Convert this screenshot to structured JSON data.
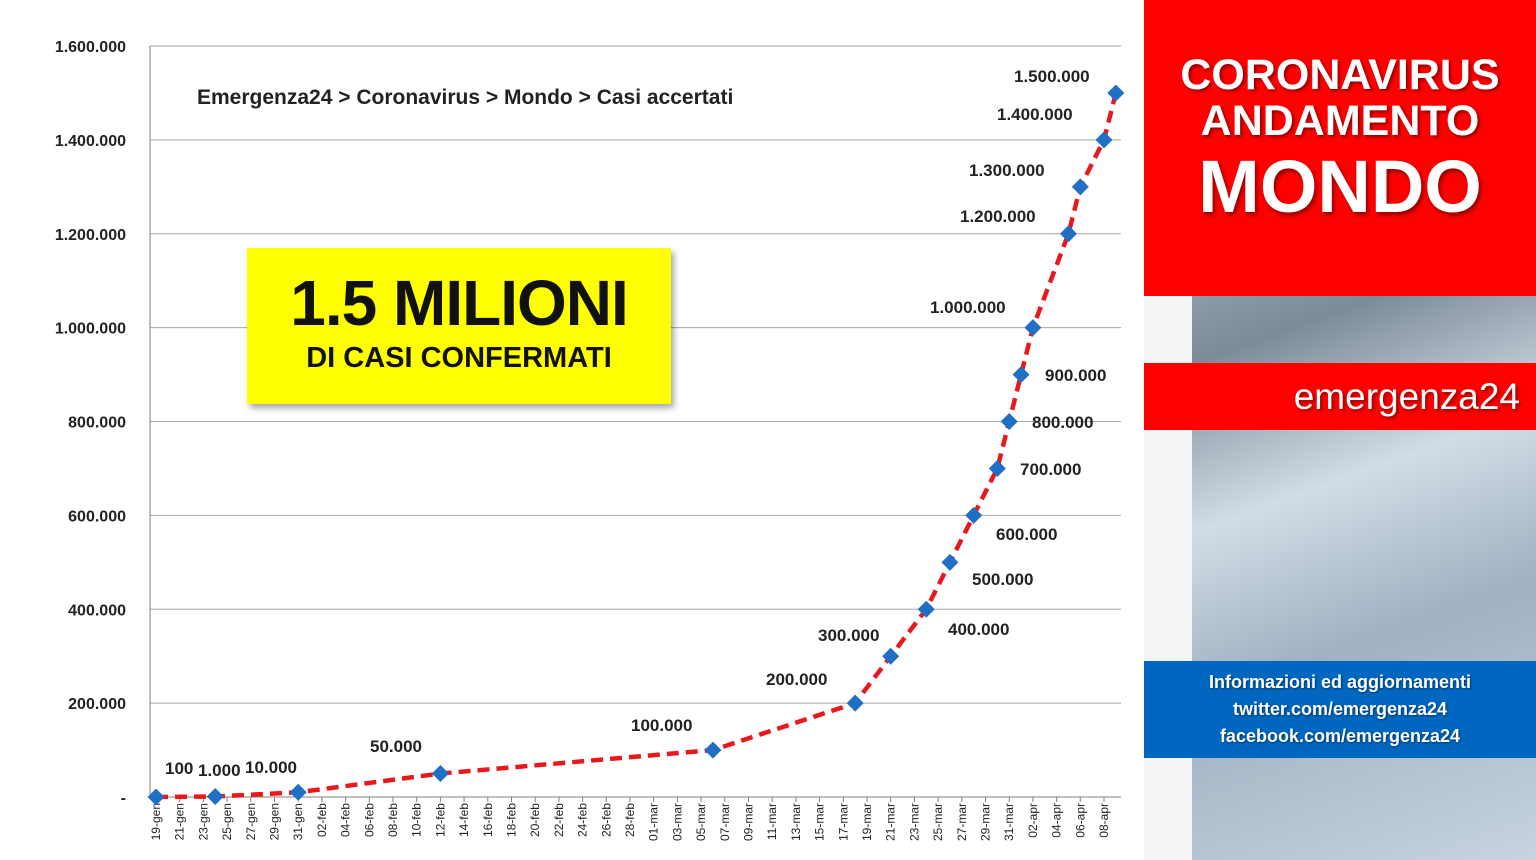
{
  "chart_data": {
    "type": "line",
    "title": "Emergenza24  > Coronavirus >  Mondo > Casi accertati",
    "ylim": [
      0,
      1600000
    ],
    "yticks": [
      {
        "value": 0,
        "label": "-"
      },
      {
        "value": 200000,
        "label": "200.000"
      },
      {
        "value": 400000,
        "label": "400.000"
      },
      {
        "value": 600000,
        "label": "600.000"
      },
      {
        "value": 800000,
        "label": "800.000"
      },
      {
        "value": 1000000,
        "label": "1.000.000"
      },
      {
        "value": 1200000,
        "label": "1.200.000"
      },
      {
        "value": 1400000,
        "label": "1.400.000"
      },
      {
        "value": 1600000,
        "label": "1.600.000"
      }
    ],
    "categories": [
      "19-gen",
      "21-gen",
      "23-gen",
      "25-gen",
      "27-gen",
      "29-gen",
      "31-gen",
      "02-feb",
      "04-feb",
      "06-feb",
      "08-feb",
      "10-feb",
      "12-feb",
      "14-feb",
      "16-feb",
      "18-feb",
      "20-feb",
      "22-feb",
      "24-feb",
      "26-feb",
      "28-feb",
      "01-mar",
      "03-mar",
      "05-mar",
      "07-mar",
      "09-mar",
      "11-mar",
      "13-mar",
      "15-mar",
      "17-mar",
      "19-mar",
      "21-mar",
      "23-mar",
      "25-mar",
      "27-mar",
      "29-mar",
      "31-mar",
      "02-apr",
      "04-apr",
      "06-apr",
      "08-apr"
    ],
    "grid": true,
    "series": [
      {
        "color": "#e8181c",
        "marker_color": "#1f6fc5",
        "points": [
          {
            "x": "19-gen",
            "y": 100,
            "label": "100"
          },
          {
            "x": "24-gen",
            "y": 1000,
            "label": "1.000"
          },
          {
            "x": "31-gen",
            "y": 10000,
            "label": "10.000"
          },
          {
            "x": "12-feb",
            "y": 50000,
            "label": "50.000"
          },
          {
            "x": "06-mar",
            "y": 100000,
            "label": "100.000"
          },
          {
            "x": "18-mar",
            "y": 200000,
            "label": "200.000"
          },
          {
            "x": "21-mar",
            "y": 300000,
            "label": "300.000"
          },
          {
            "x": "24-mar",
            "y": 400000,
            "label": "400.000"
          },
          {
            "x": "26-mar",
            "y": 500000,
            "label": "500.000"
          },
          {
            "x": "28-mar",
            "y": 600000,
            "label": "600.000"
          },
          {
            "x": "30-mar",
            "y": 700000,
            "label": "700.000"
          },
          {
            "x": "31-mar",
            "y": 800000,
            "label": "800.000"
          },
          {
            "x": "01-apr",
            "y": 900000,
            "label": "900.000"
          },
          {
            "x": "02-apr",
            "y": 1000000,
            "label": "1.000.000"
          },
          {
            "x": "05-apr",
            "y": 1200000,
            "label": "1.200.000"
          },
          {
            "x": "06-apr",
            "y": 1300000,
            "label": "1.300.000"
          },
          {
            "x": "08-apr",
            "y": 1400000,
            "label": "1.400.000"
          },
          {
            "x": "09-apr",
            "y": 1500000,
            "label": "1.500.000"
          }
        ]
      }
    ]
  },
  "highlight": {
    "big": "1.5 MILIONI",
    "small": "DI CASI CONFERMATI",
    "background": "#ffff00"
  },
  "side_panel": {
    "title_line1": "CORONAVIRUS",
    "title_line2": "ANDAMENTO",
    "title_line3": "MONDO",
    "brand": "emergenza24",
    "info_line1": "Informazioni ed aggiornamenti",
    "info_line2": "twitter.com/emergenza24",
    "info_line3": "facebook.com/emergenza24",
    "accent_red": "#ff0000",
    "accent_blue": "#0067c0"
  }
}
